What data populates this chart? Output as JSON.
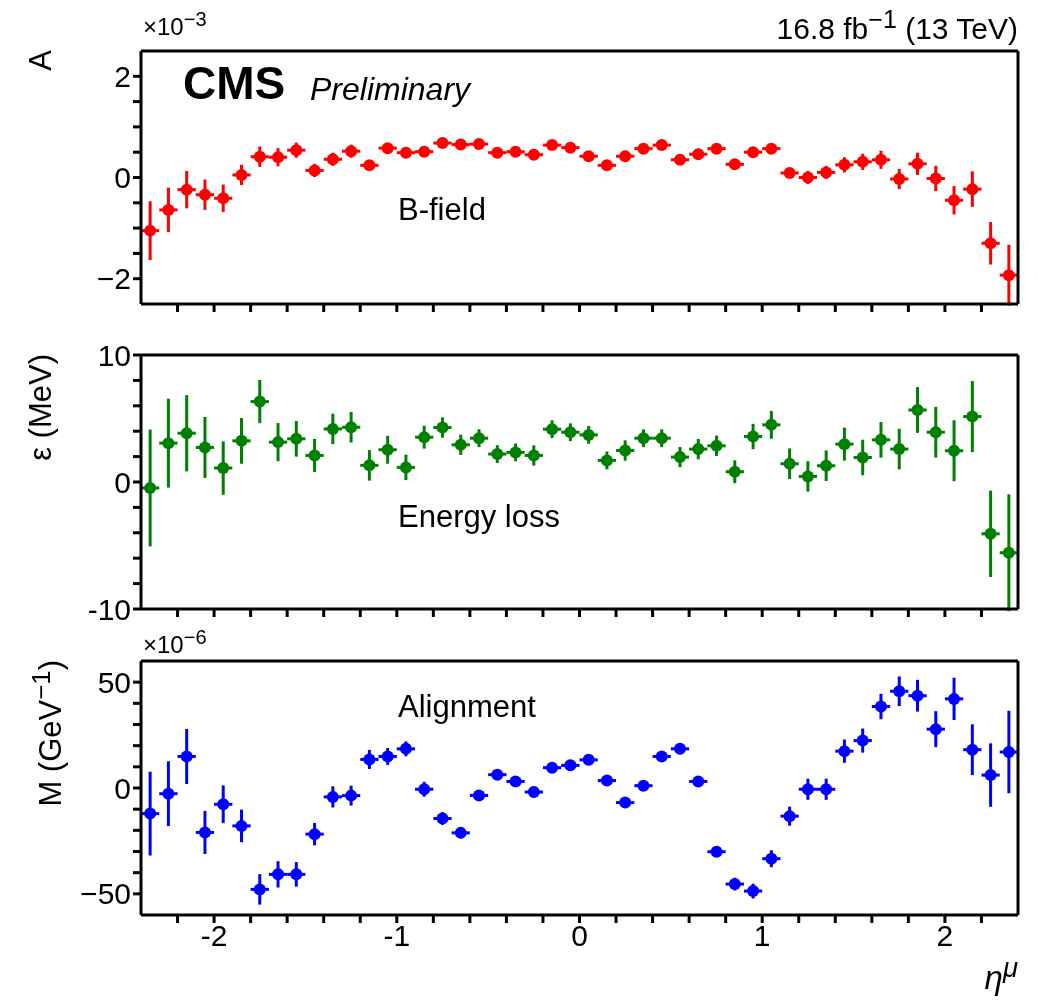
{
  "chart_data": [
    {
      "type": "scatter",
      "ylabel": "A",
      "color": "#ff0000",
      "marker": "circle",
      "tick_labels": "y",
      "annotations": [
        "CMS",
        "Preliminary",
        "16.8 fb$^{−1}$ (13 TeV)",
        "×10$^{−3}$",
        "B-field"
      ],
      "x": [
        -2.35,
        -2.25,
        -2.15,
        -2.05,
        -1.95,
        -1.85,
        -1.75,
        -1.65,
        -1.55,
        -1.45,
        -1.35,
        -1.25,
        -1.15,
        -1.05,
        -0.95,
        -0.85,
        -0.75,
        -0.65,
        -0.55,
        -0.45,
        -0.35,
        -0.25,
        -0.15,
        -0.05,
        0.05,
        0.15,
        0.25,
        0.35,
        0.45,
        0.55,
        0.65,
        0.75,
        0.85,
        0.95,
        1.05,
        1.15,
        1.25,
        1.35,
        1.45,
        1.55,
        1.65,
        1.75,
        1.85,
        1.95,
        2.05,
        2.15,
        2.25,
        2.35
      ],
      "values": [
        -1.05,
        -0.64,
        -0.24,
        -0.34,
        -0.41,
        0.05,
        0.41,
        0.4,
        0.54,
        0.14,
        0.36,
        0.52,
        0.24,
        0.58,
        0.49,
        0.51,
        0.68,
        0.65,
        0.66,
        0.49,
        0.51,
        0.45,
        0.64,
        0.59,
        0.42,
        0.24,
        0.42,
        0.57,
        0.64,
        0.35,
        0.46,
        0.57,
        0.26,
        0.5,
        0.57,
        0.09,
        0.0,
        0.1,
        0.25,
        0.31,
        0.35,
        -0.03,
        0.27,
        -0.02,
        -0.45,
        -0.23,
        -1.3,
        -1.93
      ],
      "errors": [
        0.58,
        0.44,
        0.37,
        0.3,
        0.27,
        0.2,
        0.2,
        0.18,
        0.15,
        0.13,
        0.13,
        0.13,
        0.1,
        0.08,
        0.07,
        0.07,
        0.06,
        0.06,
        0.06,
        0.06,
        0.06,
        0.06,
        0.06,
        0.06,
        0.06,
        0.06,
        0.06,
        0.06,
        0.06,
        0.06,
        0.06,
        0.06,
        0.07,
        0.07,
        0.08,
        0.1,
        0.13,
        0.13,
        0.15,
        0.16,
        0.18,
        0.2,
        0.22,
        0.25,
        0.28,
        0.35,
        0.42,
        0.6
      ],
      "xerrors": [
        0.05,
        0.05,
        0.05,
        0.05,
        0.05,
        0.05,
        0.05,
        0.05,
        0.05,
        0.05,
        0.05,
        0.05,
        0.05,
        0.05,
        0.05,
        0.05,
        0.05,
        0.05,
        0.05,
        0.05,
        0.05,
        0.05,
        0.05,
        0.05,
        0.05,
        0.05,
        0.05,
        0.05,
        0.05,
        0.05,
        0.05,
        0.05,
        0.05,
        0.05,
        0.05,
        0.05,
        0.05,
        0.05,
        0.05,
        0.05,
        0.05,
        0.05,
        0.05,
        0.05,
        0.05,
        0.05,
        0.05,
        0.05
      ],
      "xlim": [
        -2.4,
        2.4
      ],
      "xticks": [
        {
          "value": -2.2,
          "label": null
        },
        -2,
        {
          "value": -1.8,
          "label": null
        },
        {
          "value": -1.6,
          "label": null
        },
        {
          "value": -1.4,
          "label": null
        },
        {
          "value": -1.2,
          "label": null
        },
        -1,
        {
          "value": -0.8,
          "label": null
        },
        {
          "value": -0.6,
          "label": null
        },
        {
          "value": -0.4,
          "label": null
        },
        {
          "value": -0.2,
          "label": null
        },
        0,
        {
          "value": 0.2,
          "label": null
        },
        {
          "value": 0.4,
          "label": null
        },
        {
          "value": 0.6,
          "label": null
        },
        {
          "value": 0.8,
          "label": null
        },
        1,
        {
          "value": 1.2,
          "label": null
        },
        {
          "value": 1.4,
          "label": null
        },
        {
          "value": 1.6,
          "label": null
        },
        {
          "value": 1.8,
          "label": null
        },
        2,
        {
          "value": 2.2,
          "label": null
        }
      ],
      "ylim": [
        -2.5,
        2.5
      ],
      "yticks": [
        {
          "value": -2,
          "label": "−2"
        },
        {
          "value": -1.5,
          "label": null
        },
        {
          "value": -1,
          "label": null
        },
        {
          "value": -0.5,
          "label": null
        },
        0,
        {
          "value": 0.5,
          "label": null
        },
        {
          "value": 1,
          "label": null
        },
        {
          "value": 1.5,
          "label": null
        },
        2
      ]
    },
    {
      "type": "scatter",
      "ylabel": "ε (MeV)",
      "color": "#008000",
      "marker": "circle",
      "tick_labels": "y",
      "annotations": [
        "Energy loss"
      ],
      "x": [
        -2.35,
        -2.25,
        -2.15,
        -2.05,
        -1.95,
        -1.85,
        -1.75,
        -1.65,
        -1.55,
        -1.45,
        -1.35,
        -1.25,
        -1.15,
        -1.05,
        -0.95,
        -0.85,
        -0.75,
        -0.65,
        -0.55,
        -0.45,
        -0.35,
        -0.25,
        -0.15,
        -0.05,
        0.05,
        0.15,
        0.25,
        0.35,
        0.45,
        0.55,
        0.65,
        0.75,
        0.85,
        0.95,
        1.05,
        1.15,
        1.25,
        1.35,
        1.45,
        1.55,
        1.65,
        1.75,
        1.85,
        1.95,
        2.05,
        2.15,
        2.25,
        2.35
      ],
      "values": [
        -0.47,
        3.06,
        3.84,
        2.72,
        1.1,
        3.24,
        6.33,
        3.14,
        3.4,
        2.09,
        4.18,
        4.31,
        1.31,
        2.54,
        1.15,
        3.53,
        4.29,
        2.93,
        3.45,
        2.2,
        2.33,
        2.09,
        4.16,
        3.92,
        3.71,
        1.7,
        2.48,
        3.45,
        3.45,
        1.96,
        2.59,
        2.85,
        0.81,
        3.58,
        4.5,
        1.44,
        0.44,
        1.28,
        2.98,
        1.93,
        3.32,
        2.59,
        5.67,
        3.92,
        2.46,
        5.15,
        -4.08,
        -5.57
      ],
      "errors": [
        4.6,
        3.5,
        3.0,
        2.4,
        2.1,
        1.8,
        1.7,
        1.5,
        1.4,
        1.3,
        1.2,
        1.2,
        1.2,
        1.1,
        1.0,
        0.9,
        0.8,
        0.8,
        0.7,
        0.7,
        0.7,
        0.8,
        0.7,
        0.7,
        0.7,
        0.7,
        0.8,
        0.7,
        0.7,
        0.8,
        0.8,
        0.8,
        0.9,
        1.0,
        1.1,
        1.2,
        1.2,
        1.2,
        1.3,
        1.4,
        1.4,
        1.6,
        1.8,
        2.0,
        2.4,
        2.8,
        3.4,
        4.6
      ],
      "xerrors": [
        0.05,
        0.05,
        0.05,
        0.05,
        0.05,
        0.05,
        0.05,
        0.05,
        0.05,
        0.05,
        0.05,
        0.05,
        0.05,
        0.05,
        0.05,
        0.05,
        0.05,
        0.05,
        0.05,
        0.05,
        0.05,
        0.05,
        0.05,
        0.05,
        0.05,
        0.05,
        0.05,
        0.05,
        0.05,
        0.05,
        0.05,
        0.05,
        0.05,
        0.05,
        0.05,
        0.05,
        0.05,
        0.05,
        0.05,
        0.05,
        0.05,
        0.05,
        0.05,
        0.05,
        0.05,
        0.05,
        0.05,
        0.05
      ],
      "xlim": [
        -2.4,
        2.4
      ],
      "xticks": [
        {
          "value": -2.2,
          "label": null
        },
        -2,
        {
          "value": -1.8,
          "label": null
        },
        {
          "value": -1.6,
          "label": null
        },
        {
          "value": -1.4,
          "label": null
        },
        {
          "value": -1.2,
          "label": null
        },
        -1,
        {
          "value": -0.8,
          "label": null
        },
        {
          "value": -0.6,
          "label": null
        },
        {
          "value": -0.4,
          "label": null
        },
        {
          "value": -0.2,
          "label": null
        },
        0,
        {
          "value": 0.2,
          "label": null
        },
        {
          "value": 0.4,
          "label": null
        },
        {
          "value": 0.6,
          "label": null
        },
        {
          "value": 0.8,
          "label": null
        },
        1,
        {
          "value": 1.2,
          "label": null
        },
        {
          "value": 1.4,
          "label": null
        },
        {
          "value": 1.6,
          "label": null
        },
        {
          "value": 1.8,
          "label": null
        },
        2,
        {
          "value": 2.2,
          "label": null
        }
      ],
      "ylim": [
        -10,
        10
      ],
      "yticks": [
        -10,
        {
          "value": -8,
          "label": null
        },
        {
          "value": -6,
          "label": null
        },
        {
          "value": -4,
          "label": null
        },
        {
          "value": -2,
          "label": null
        },
        0,
        {
          "value": 2,
          "label": null
        },
        {
          "value": 4,
          "label": null
        },
        {
          "value": 6,
          "label": null
        },
        {
          "value": 8,
          "label": null
        },
        10
      ]
    },
    {
      "type": "scatter",
      "ylabel": "M (GeV$^{−1}$)",
      "xlabel": "η$^{μ}$",
      "color": "#0000ff",
      "marker": "circle",
      "annotations": [
        "×10$^{−6}$",
        "Alignment"
      ],
      "x": [
        -2.35,
        -2.25,
        -2.15,
        -2.05,
        -1.95,
        -1.85,
        -1.75,
        -1.65,
        -1.55,
        -1.45,
        -1.35,
        -1.25,
        -1.15,
        -1.05,
        -0.95,
        -0.85,
        -0.75,
        -0.65,
        -0.55,
        -0.45,
        -0.35,
        -0.25,
        -0.15,
        -0.05,
        0.05,
        0.15,
        0.25,
        0.35,
        0.45,
        0.55,
        0.65,
        0.75,
        0.85,
        0.95,
        1.05,
        1.15,
        1.25,
        1.35,
        1.45,
        1.55,
        1.65,
        1.75,
        1.85,
        1.95,
        2.05,
        2.15,
        2.25,
        2.35
      ],
      "values": [
        -12.1,
        -2.7,
        14.9,
        -21.0,
        -7.7,
        -17.9,
        -47.9,
        -40.8,
        -40.8,
        -21.8,
        -4.2,
        -3.6,
        13.5,
        14.9,
        18.5,
        -0.6,
        -14.4,
        -21.2,
        -3.5,
        6.3,
        3.1,
        -1.9,
        9.6,
        10.7,
        13.3,
        3.5,
        -6.9,
        1.1,
        14.9,
        18.5,
        3.1,
        -30.1,
        -45.4,
        -48.7,
        -33.4,
        -13.3,
        -0.6,
        -0.6,
        17.4,
        22.4,
        38.5,
        45.7,
        43.6,
        27.8,
        42.1,
        18.1,
        6.1,
        17.0
      ],
      "errors": [
        19.8,
        15.3,
        13,
        10.2,
        8.9,
        7.7,
        7.2,
        6.2,
        5.8,
        5.3,
        5,
        4.7,
        4.5,
        4,
        3.5,
        3.5,
        3,
        2.5,
        2.5,
        2.5,
        2.5,
        2.5,
        2.5,
        2.5,
        2.5,
        2.5,
        2.5,
        2.5,
        2.5,
        2.5,
        2.5,
        2.5,
        3,
        3.5,
        4,
        4.5,
        5,
        5,
        5.5,
        5.7,
        6,
        7,
        7.5,
        8.5,
        10,
        12,
        15,
        19.5
      ],
      "xerrors": [
        0.05,
        0.05,
        0.05,
        0.05,
        0.05,
        0.05,
        0.05,
        0.05,
        0.05,
        0.05,
        0.05,
        0.05,
        0.05,
        0.05,
        0.05,
        0.05,
        0.05,
        0.05,
        0.05,
        0.05,
        0.05,
        0.05,
        0.05,
        0.05,
        0.05,
        0.05,
        0.05,
        0.05,
        0.05,
        0.05,
        0.05,
        0.05,
        0.05,
        0.05,
        0.05,
        0.05,
        0.05,
        0.05,
        0.05,
        0.05,
        0.05,
        0.05,
        0.05,
        0.05,
        0.05,
        0.05,
        0.05,
        0.05
      ],
      "xlim": [
        -2.4,
        2.4
      ],
      "xticks": [
        {
          "value": -2.2,
          "label": null
        },
        -2,
        {
          "value": -1.8,
          "label": null
        },
        {
          "value": -1.6,
          "label": null
        },
        {
          "value": -1.4,
          "label": null
        },
        {
          "value": -1.2,
          "label": null
        },
        -1,
        {
          "value": -0.8,
          "label": null
        },
        {
          "value": -0.6,
          "label": null
        },
        {
          "value": -0.4,
          "label": null
        },
        {
          "value": -0.2,
          "label": null
        },
        0,
        {
          "value": 0.2,
          "label": null
        },
        {
          "value": 0.4,
          "label": null
        },
        {
          "value": 0.6,
          "label": null
        },
        {
          "value": 0.8,
          "label": null
        },
        1,
        {
          "value": 1.2,
          "label": null
        },
        {
          "value": 1.4,
          "label": null
        },
        {
          "value": 1.6,
          "label": null
        },
        {
          "value": 1.8,
          "label": null
        },
        2,
        {
          "value": 2.2,
          "label": null
        }
      ],
      "ylim": [
        -60,
        60
      ],
      "yticks": [
        {
          "value": -50,
          "label": "−50"
        },
        {
          "value": -40,
          "label": null
        },
        {
          "value": -30,
          "label": null
        },
        {
          "value": -20,
          "label": null
        },
        {
          "value": -10,
          "label": null
        },
        0,
        {
          "value": 10,
          "label": null
        },
        {
          "value": 20,
          "label": null
        },
        {
          "value": 30,
          "label": null
        },
        {
          "value": 40,
          "label": null
        },
        50
      ]
    }
  ]
}
